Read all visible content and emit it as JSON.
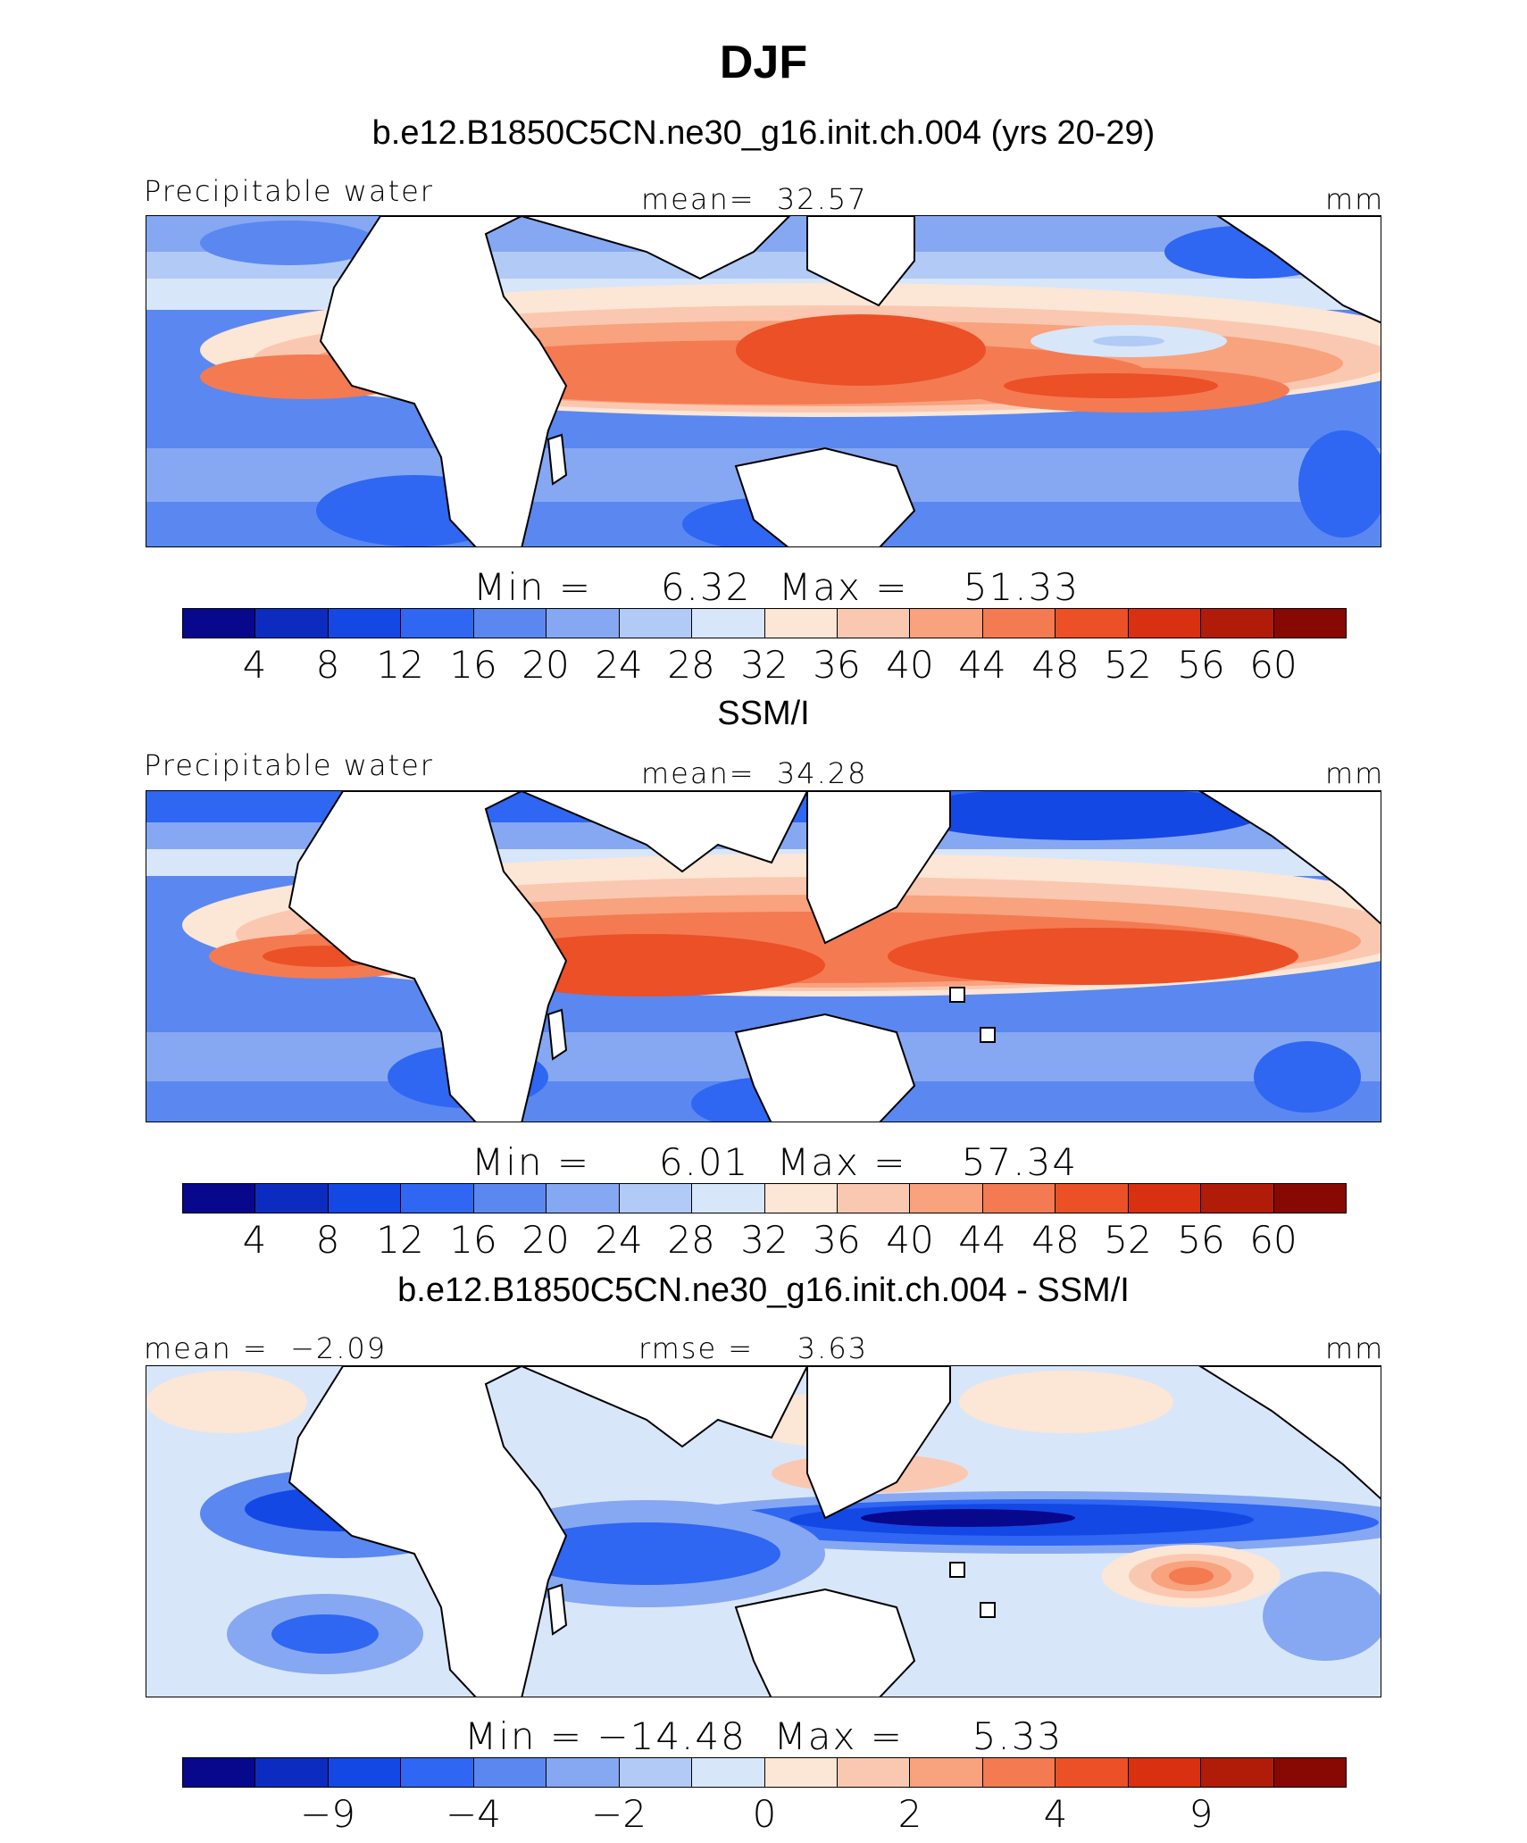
{
  "title": "DJF",
  "palette": [
    "#08088c",
    "#0c2cc0",
    "#1448e4",
    "#2f66f2",
    "#5a88f0",
    "#86a8f2",
    "#b2caf6",
    "#d8e6fa",
    "#fce6d6",
    "#fac8b0",
    "#f8a27e",
    "#f47a52",
    "#ec5026",
    "#d83010",
    "#b01c08",
    "#880804"
  ],
  "colors": {
    "land": "#ffffff",
    "coastline": "#000000"
  },
  "panels": [
    {
      "title": "b.e12.B1850C5CN.ne30_g16.init.ch.004 (yrs 20-29)",
      "left_label": "Precipitable water",
      "center_label": "mean=  32.57",
      "right_label": "mm",
      "stats": "Min =     6.32  Max =    51.33",
      "tick_labels": [
        "4",
        "8",
        "12",
        "16",
        "20",
        "24",
        "28",
        "32",
        "36",
        "40",
        "44",
        "48",
        "52",
        "56",
        "60"
      ]
    },
    {
      "title": "SSM/I",
      "left_label": "Precipitable water",
      "center_label": "mean=  34.28",
      "right_label": "mm",
      "stats": "Min =     6.01  Max =    57.34",
      "tick_labels": [
        "4",
        "8",
        "12",
        "16",
        "20",
        "24",
        "28",
        "32",
        "36",
        "40",
        "44",
        "48",
        "52",
        "56",
        "60"
      ]
    },
    {
      "title": "b.e12.B1850C5CN.ne30_g16.init.ch.004 - SSM/I",
      "left_label": "mean =  −2.09",
      "center_label": "rmse =    3.63",
      "right_label": "mm",
      "stats": "Min = −14.48  Max =     5.33",
      "tick_labels": [
        "−9",
        "−4",
        "−2",
        "0",
        "2",
        "4",
        "9"
      ]
    }
  ]
}
